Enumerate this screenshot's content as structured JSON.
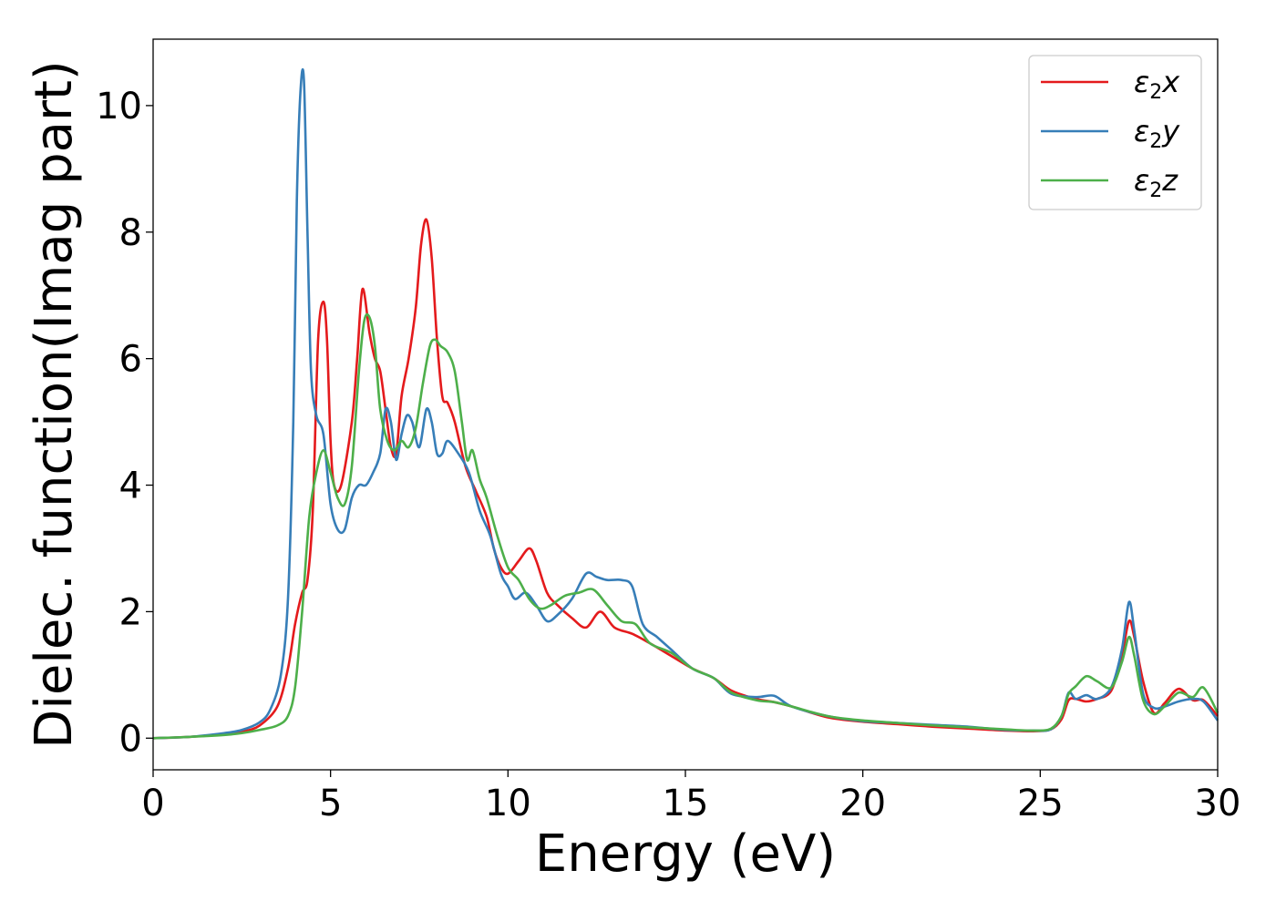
{
  "chart_data": {
    "type": "line",
    "title": "",
    "xlabel": "Energy (eV)",
    "ylabel": "Dielec. function(Imag part)",
    "xlim": [
      0,
      30
    ],
    "ylim": [
      -0.5,
      11.05
    ],
    "xticks": [
      "0",
      "5",
      "10",
      "15",
      "20",
      "25",
      "30"
    ],
    "yticks": [
      "0",
      "2",
      "4",
      "6",
      "8",
      "10"
    ],
    "grid": false,
    "legend_position": "top-right",
    "series": [
      {
        "name": "ε2x",
        "legend_main": "ε",
        "legend_sub": "2",
        "legend_var": "x",
        "color": "#e41a1c",
        "x": [
          0,
          1,
          2,
          2.5,
          3,
          3.5,
          3.8,
          4.0,
          4.2,
          4.35,
          4.5,
          4.65,
          4.8,
          4.9,
          5.0,
          5.1,
          5.3,
          5.6,
          5.75,
          5.9,
          6.1,
          6.25,
          6.4,
          6.55,
          6.7,
          6.85,
          7.0,
          7.2,
          7.4,
          7.55,
          7.7,
          7.85,
          8.0,
          8.15,
          8.3,
          8.5,
          8.8,
          9.1,
          9.4,
          9.6,
          9.8,
          10.0,
          10.3,
          10.6,
          10.8,
          11.1,
          11.4,
          11.8,
          12.2,
          12.6,
          13.0,
          13.5,
          14.0,
          14.6,
          15.2,
          15.8,
          16.3,
          17.0,
          17.5,
          18.0,
          19.0,
          20.0,
          21.0,
          22.0,
          23.0,
          24.0,
          24.8,
          25.3,
          25.6,
          25.8,
          26.0,
          26.3,
          26.6,
          27.0,
          27.3,
          27.5,
          27.65,
          27.9,
          28.2,
          28.5,
          28.9,
          29.3,
          29.6,
          30.0
        ],
        "y": [
          0.0,
          0.02,
          0.06,
          0.1,
          0.2,
          0.5,
          1.1,
          1.8,
          2.3,
          2.5,
          3.6,
          6.3,
          6.9,
          6.3,
          4.7,
          4.0,
          4.0,
          5.0,
          6.0,
          7.1,
          6.4,
          6.0,
          5.8,
          5.2,
          4.6,
          4.5,
          5.4,
          6.0,
          6.8,
          7.8,
          8.2,
          7.6,
          6.3,
          5.4,
          5.3,
          5.0,
          4.3,
          3.9,
          3.5,
          3.0,
          2.7,
          2.6,
          2.8,
          3.0,
          2.8,
          2.3,
          2.1,
          1.9,
          1.75,
          2.0,
          1.75,
          1.65,
          1.5,
          1.3,
          1.1,
          0.95,
          0.75,
          0.62,
          0.57,
          0.5,
          0.33,
          0.26,
          0.22,
          0.18,
          0.15,
          0.12,
          0.11,
          0.14,
          0.3,
          0.6,
          0.62,
          0.58,
          0.62,
          0.75,
          1.3,
          1.85,
          1.6,
          0.9,
          0.4,
          0.55,
          0.78,
          0.6,
          0.6,
          0.35
        ]
      },
      {
        "name": "ε2y",
        "legend_main": "ε",
        "legend_sub": "2",
        "legend_var": "y",
        "color": "#377eb8",
        "x": [
          0,
          1,
          2,
          2.5,
          3,
          3.3,
          3.6,
          3.8,
          3.95,
          4.05,
          4.15,
          4.25,
          4.35,
          4.45,
          4.6,
          4.8,
          5.0,
          5.2,
          5.4,
          5.6,
          5.8,
          6.0,
          6.2,
          6.4,
          6.55,
          6.7,
          6.85,
          7.0,
          7.15,
          7.3,
          7.5,
          7.7,
          7.85,
          8.0,
          8.15,
          8.3,
          8.6,
          8.9,
          9.2,
          9.5,
          9.8,
          10.0,
          10.2,
          10.5,
          10.8,
          11.1,
          11.4,
          11.8,
          12.2,
          12.5,
          12.8,
          13.2,
          13.5,
          13.8,
          14.2,
          14.6,
          15.2,
          15.8,
          16.3,
          17.0,
          17.5,
          18.0,
          19.0,
          20.0,
          21.0,
          22.0,
          23.0,
          24.0,
          24.8,
          25.3,
          25.6,
          25.8,
          26.0,
          26.3,
          26.6,
          27.0,
          27.3,
          27.5,
          27.65,
          27.9,
          28.2,
          28.5,
          28.9,
          29.3,
          29.6,
          30.0
        ],
        "y": [
          0.0,
          0.02,
          0.08,
          0.13,
          0.25,
          0.45,
          1.0,
          2.2,
          5.0,
          8.5,
          10.2,
          10.4,
          8.0,
          5.8,
          5.1,
          4.8,
          3.7,
          3.3,
          3.3,
          3.8,
          4.0,
          4.0,
          4.2,
          4.5,
          5.2,
          5.0,
          4.4,
          4.8,
          5.1,
          5.0,
          4.6,
          5.2,
          5.0,
          4.5,
          4.5,
          4.7,
          4.5,
          4.2,
          3.6,
          3.2,
          2.6,
          2.4,
          2.2,
          2.3,
          2.1,
          1.85,
          1.95,
          2.2,
          2.6,
          2.55,
          2.5,
          2.5,
          2.4,
          1.8,
          1.6,
          1.4,
          1.1,
          0.95,
          0.7,
          0.65,
          0.67,
          0.5,
          0.35,
          0.27,
          0.24,
          0.21,
          0.18,
          0.13,
          0.12,
          0.14,
          0.35,
          0.72,
          0.62,
          0.68,
          0.62,
          0.8,
          1.4,
          2.15,
          1.7,
          0.7,
          0.48,
          0.5,
          0.58,
          0.62,
          0.58,
          0.28
        ]
      },
      {
        "name": "ε2z",
        "legend_main": "ε",
        "legend_sub": "2",
        "legend_var": "z",
        "color": "#4daf4a",
        "x": [
          0,
          1,
          2,
          2.5,
          3,
          3.5,
          3.8,
          4.0,
          4.2,
          4.4,
          4.6,
          4.8,
          5.0,
          5.2,
          5.4,
          5.6,
          5.8,
          5.95,
          6.1,
          6.25,
          6.4,
          6.6,
          6.8,
          7.0,
          7.2,
          7.4,
          7.6,
          7.8,
          7.95,
          8.1,
          8.3,
          8.5,
          8.7,
          8.85,
          9.0,
          9.2,
          9.4,
          9.7,
          10.0,
          10.3,
          10.6,
          10.9,
          11.2,
          11.6,
          12.0,
          12.4,
          12.8,
          13.2,
          13.6,
          14.0,
          14.6,
          15.2,
          15.8,
          16.3,
          17.0,
          17.5,
          18.0,
          19.0,
          20.0,
          21.0,
          22.0,
          23.0,
          24.0,
          24.8,
          25.3,
          25.6,
          25.8,
          26.0,
          26.3,
          26.6,
          27.0,
          27.3,
          27.5,
          27.65,
          27.9,
          28.2,
          28.5,
          28.9,
          29.3,
          29.6,
          30.0
        ],
        "y": [
          0.0,
          0.02,
          0.05,
          0.08,
          0.13,
          0.2,
          0.35,
          0.8,
          2.0,
          3.5,
          4.2,
          4.55,
          4.2,
          3.8,
          3.7,
          4.3,
          5.8,
          6.6,
          6.65,
          6.2,
          5.2,
          4.7,
          4.55,
          4.7,
          4.6,
          4.9,
          5.6,
          6.2,
          6.3,
          6.2,
          6.1,
          5.8,
          5.0,
          4.4,
          4.55,
          4.1,
          3.8,
          3.2,
          2.7,
          2.5,
          2.2,
          2.05,
          2.1,
          2.25,
          2.3,
          2.35,
          2.1,
          1.85,
          1.8,
          1.5,
          1.35,
          1.1,
          0.95,
          0.72,
          0.6,
          0.57,
          0.5,
          0.35,
          0.28,
          0.24,
          0.2,
          0.17,
          0.14,
          0.12,
          0.15,
          0.35,
          0.7,
          0.82,
          0.98,
          0.9,
          0.8,
          1.2,
          1.6,
          1.3,
          0.6,
          0.38,
          0.5,
          0.72,
          0.65,
          0.8,
          0.4
        ]
      }
    ]
  }
}
